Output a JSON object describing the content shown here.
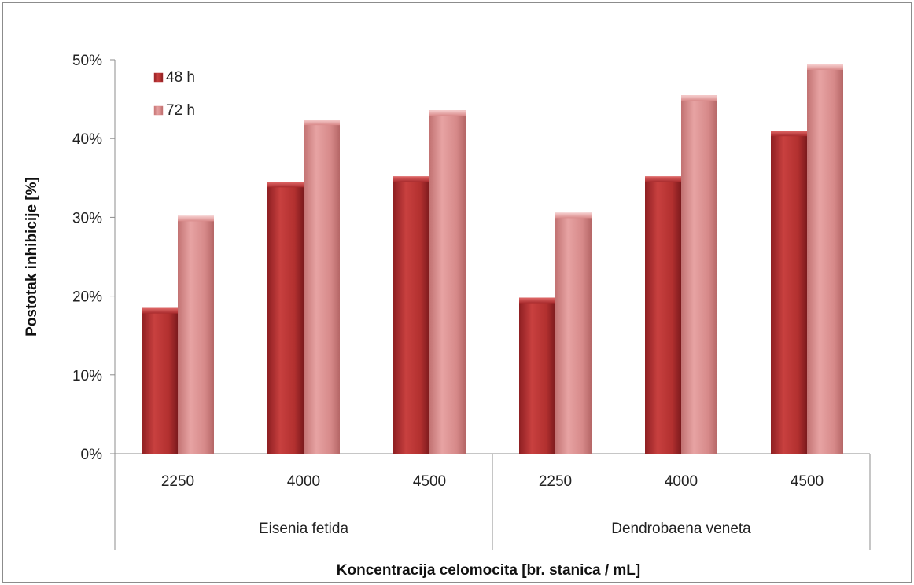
{
  "chart_data": {
    "type": "bar",
    "title": "",
    "xlabel": "Koncentracija celomocita [br. stanica / mL]",
    "ylabel": "Postotak inhibicije [%]",
    "ylim": [
      0,
      50
    ],
    "yticks": [
      "0%",
      "10%",
      "20%",
      "30%",
      "40%",
      "50%"
    ],
    "groups": [
      {
        "name": "Eisenia fetida",
        "categories": [
          "2250",
          "4000",
          "4500"
        ]
      },
      {
        "name": "Dendrobaena veneta",
        "categories": [
          "2250",
          "4000",
          "4500"
        ]
      }
    ],
    "categories": [
      "2250",
      "4000",
      "4500",
      "2250",
      "4000",
      "4500"
    ],
    "series": [
      {
        "name": "48 h",
        "color": "#c0373a",
        "values": [
          18.5,
          34.5,
          35.2,
          19.8,
          35.2,
          41.0
        ]
      },
      {
        "name": "72 h",
        "color": "#d98585",
        "values": [
          30.2,
          42.4,
          43.6,
          30.6,
          45.5,
          49.4
        ]
      }
    ],
    "legend_position": "top-left",
    "grid": false
  }
}
